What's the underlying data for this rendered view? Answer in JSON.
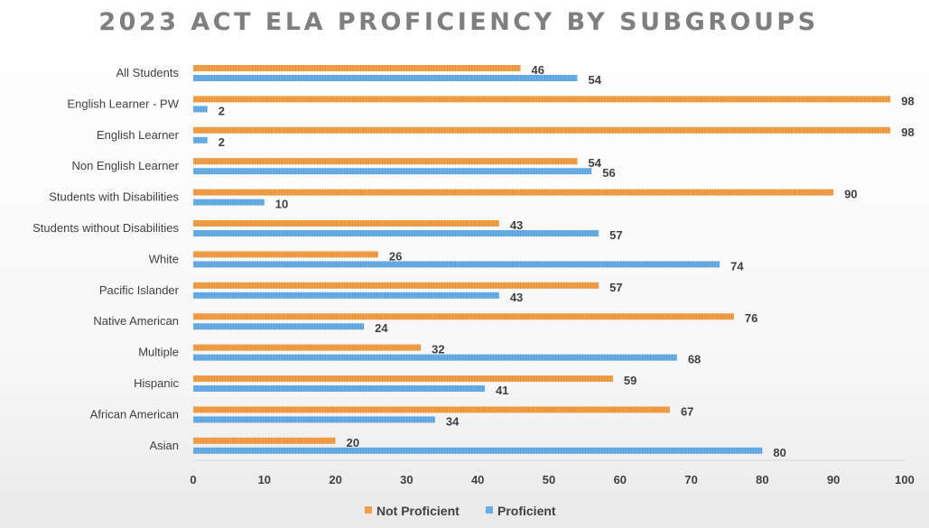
{
  "chart_data": {
    "type": "bar",
    "orientation": "horizontal",
    "title": "2023 ACT ELA PROFICIENCY BY SUBGROUPS",
    "categories": [
      "All Students",
      "English Learner - PW",
      "English Learner",
      "Non English Learner",
      "Students with Disabilities",
      "Students without Disabilities",
      "White",
      "Pacific Islander",
      "Native American",
      "Multiple",
      "Hispanic",
      "African American",
      "Asian"
    ],
    "series": [
      {
        "name": "Not Proficient",
        "color": "#f0a04b",
        "values": [
          46,
          98,
          98,
          54,
          90,
          43,
          26,
          57,
          76,
          32,
          59,
          67,
          20
        ]
      },
      {
        "name": "Proficient",
        "color": "#6aaee6",
        "values": [
          54,
          2,
          2,
          56,
          10,
          57,
          74,
          43,
          24,
          68,
          41,
          34,
          80
        ]
      }
    ],
    "xlim": [
      0,
      100
    ],
    "xticks": [
      "0",
      "10",
      "20",
      "30",
      "40",
      "50",
      "60",
      "70",
      "80",
      "90",
      "100"
    ],
    "xlabel": "",
    "ylabel": "",
    "legend": "bottom",
    "grid": false
  }
}
